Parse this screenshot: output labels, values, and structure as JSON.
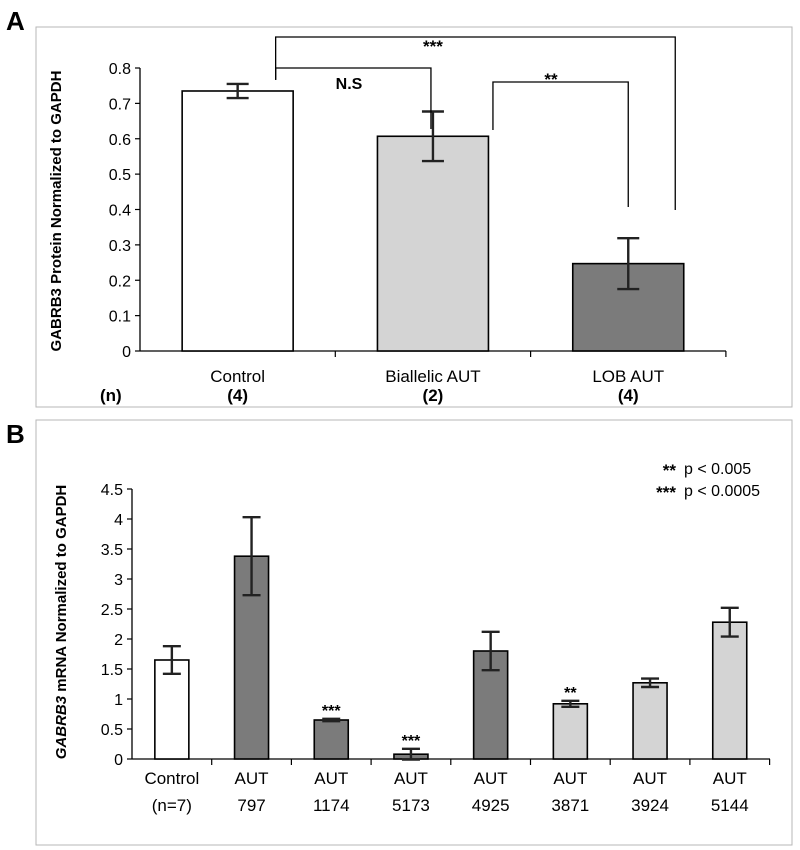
{
  "panels": {
    "a": {
      "letter": "A",
      "n_header": "(n)",
      "n_values": [
        "(4)",
        "(2)",
        "(4)"
      ],
      "sig_labels": {
        "control_vs_lob": "***",
        "control_vs_biallelic": "N.S",
        "biallelic_vs_lob": "**"
      }
    },
    "b": {
      "letter": "B",
      "ylabel_italic": "GABRB3",
      "ylabel_rest": " mRNA Normalized to  GAPDH",
      "legend": [
        {
          "stars": "**",
          "text": "p < 0.005"
        },
        {
          "stars": "***",
          "text": "p < 0.0005"
        }
      ],
      "bar_sig": [
        "",
        "",
        "***",
        "***",
        "",
        "**",
        "",
        ""
      ]
    }
  },
  "chart_data": [
    {
      "type": "bar",
      "title": "",
      "ylabel": "GABRB3 Protein Normalized to GAPDH",
      "xlabel": "",
      "ylim": [
        0,
        0.8
      ],
      "yticks": [
        "0",
        "0.1",
        "0.2",
        "0.3",
        "0.4",
        "0.5",
        "0.6",
        "0.7",
        "0.8"
      ],
      "categories": [
        "Control",
        "Biallelic AUT",
        "LOB AUT"
      ],
      "values": [
        0.735,
        0.607,
        0.247
      ],
      "errors": [
        0.02,
        0.07,
        0.072
      ],
      "colors": [
        "#ffffff",
        "#d4d4d4",
        "#7b7b7b"
      ]
    },
    {
      "type": "bar",
      "title": "",
      "ylabel": "GABRB3 mRNA Normalized to GAPDH",
      "xlabel": "",
      "ylim": [
        0,
        4.5
      ],
      "yticks": [
        "0",
        "0.5",
        "1",
        "1.5",
        "2",
        "2.5",
        "3",
        "3.5",
        "4",
        "4.5"
      ],
      "categories": [
        [
          "Control",
          "(n=7)"
        ],
        [
          "AUT",
          "797"
        ],
        [
          "AUT",
          "1174"
        ],
        [
          "AUT",
          "5173"
        ],
        [
          "AUT",
          "4925"
        ],
        [
          "AUT",
          "3871"
        ],
        [
          "AUT",
          "3924"
        ],
        [
          "AUT",
          "5144"
        ]
      ],
      "values": [
        1.65,
        3.38,
        0.65,
        0.08,
        1.8,
        0.92,
        1.27,
        2.28
      ],
      "errors": [
        0.23,
        0.65,
        0.02,
        0.09,
        0.32,
        0.05,
        0.07,
        0.24
      ],
      "colors": [
        "#ffffff",
        "#7b7b7b",
        "#7b7b7b",
        "#7b7b7b",
        "#7b7b7b",
        "#d4d4d4",
        "#d4d4d4",
        "#d4d4d4"
      ]
    }
  ]
}
